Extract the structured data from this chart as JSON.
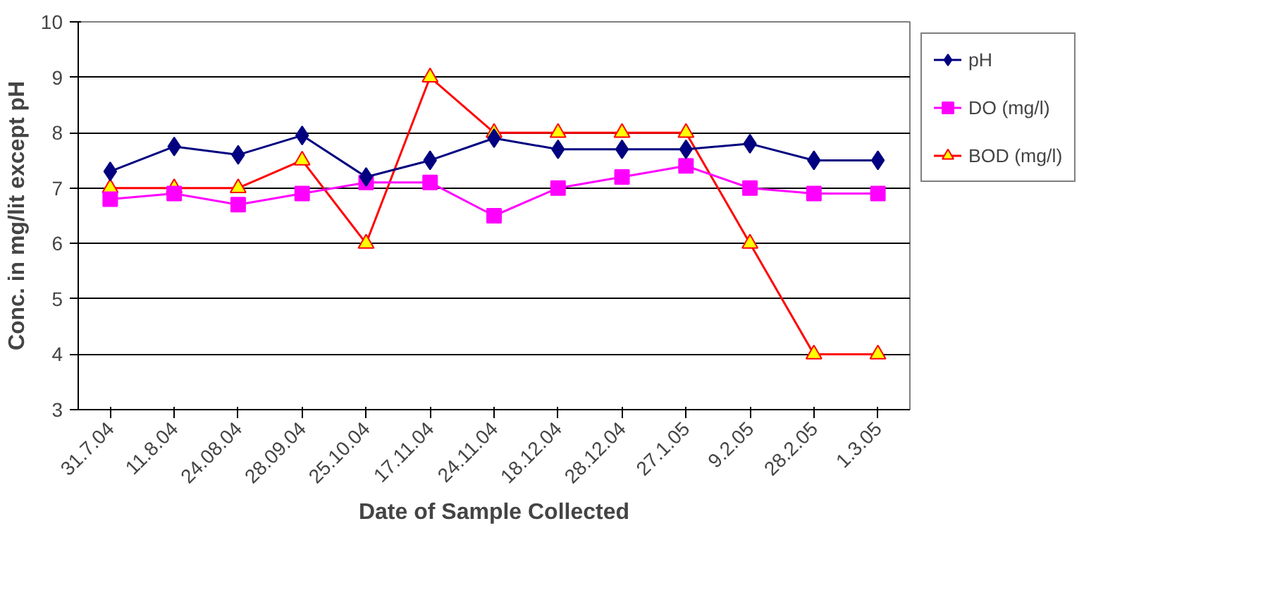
{
  "chart_data": {
    "type": "line",
    "xlabel": "Date of Sample Collected",
    "ylabel": "Conc. in mg/lit except pH",
    "categories": [
      "31.7.04",
      "11.8.04",
      "24.08.04",
      "28.09.04",
      "25.10.04",
      "17.11.04",
      "24.11.04",
      "18.12.04",
      "28.12.04",
      "27.1.05",
      "9.2.05",
      "28.2.05",
      "1.3.05"
    ],
    "series": [
      {
        "name": "pH",
        "color": "#000080",
        "marker": "diamond",
        "values": [
          7.3,
          7.75,
          7.6,
          7.95,
          7.2,
          7.5,
          7.9,
          7.7,
          7.7,
          7.7,
          7.8,
          7.5,
          7.5
        ]
      },
      {
        "name": "DO (mg/l)",
        "color": "#ff00ff",
        "marker": "square",
        "values": [
          6.8,
          6.9,
          6.7,
          6.9,
          7.1,
          7.1,
          6.5,
          7.0,
          7.2,
          7.4,
          7.0,
          6.9,
          6.9
        ]
      },
      {
        "name": "BOD (mg/l)",
        "color": "#ff0000",
        "marker": "triangle",
        "values": [
          7,
          7,
          7,
          7.5,
          6,
          9,
          8,
          8,
          8,
          8,
          6,
          4,
          4
        ]
      }
    ],
    "ylim": [
      3,
      10
    ],
    "yticks": [
      3,
      4,
      5,
      6,
      7,
      8,
      9,
      10
    ],
    "grid": "y",
    "legend": "right"
  }
}
